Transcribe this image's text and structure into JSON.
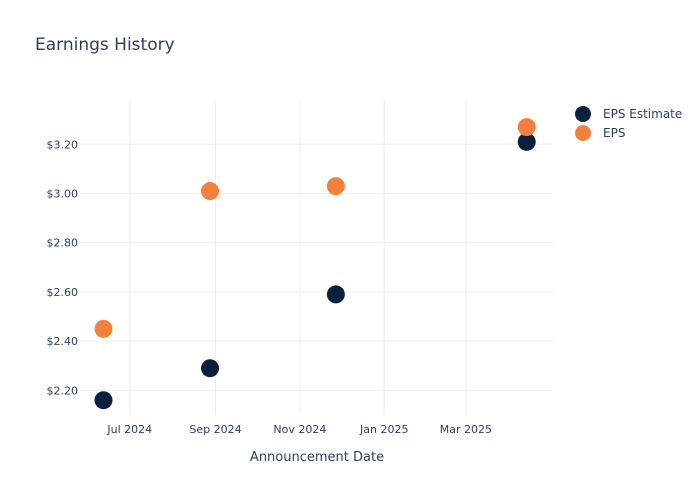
{
  "chart_data": {
    "type": "scatter",
    "title": "Earnings History",
    "xlabel": "Announcement Date",
    "ylabel": "",
    "x_ticks": [
      "Jul 2024",
      "Sep 2024",
      "Nov 2024",
      "Jan 2025",
      "Mar 2025"
    ],
    "y_ticks": [
      "$2.20",
      "$2.40",
      "$2.60",
      "$2.80",
      "$3.00",
      "$3.20"
    ],
    "y_tick_values": [
      2.2,
      2.4,
      2.6,
      2.8,
      3.0,
      3.2
    ],
    "xlim": [
      "2024-05-26",
      "2025-05-03"
    ],
    "ylim": [
      2.1,
      3.38
    ],
    "grid": true,
    "legend_position": "top-right",
    "x": [
      "2024-06-12",
      "2024-08-28",
      "2024-11-27",
      "2025-04-14"
    ],
    "series": [
      {
        "name": "EPS Estimate",
        "color": "#0b1f3f",
        "values": [
          2.16,
          2.29,
          2.59,
          3.21
        ]
      },
      {
        "name": "EPS",
        "color": "#f5803e",
        "values": [
          2.45,
          3.01,
          3.03,
          3.27
        ]
      }
    ]
  }
}
